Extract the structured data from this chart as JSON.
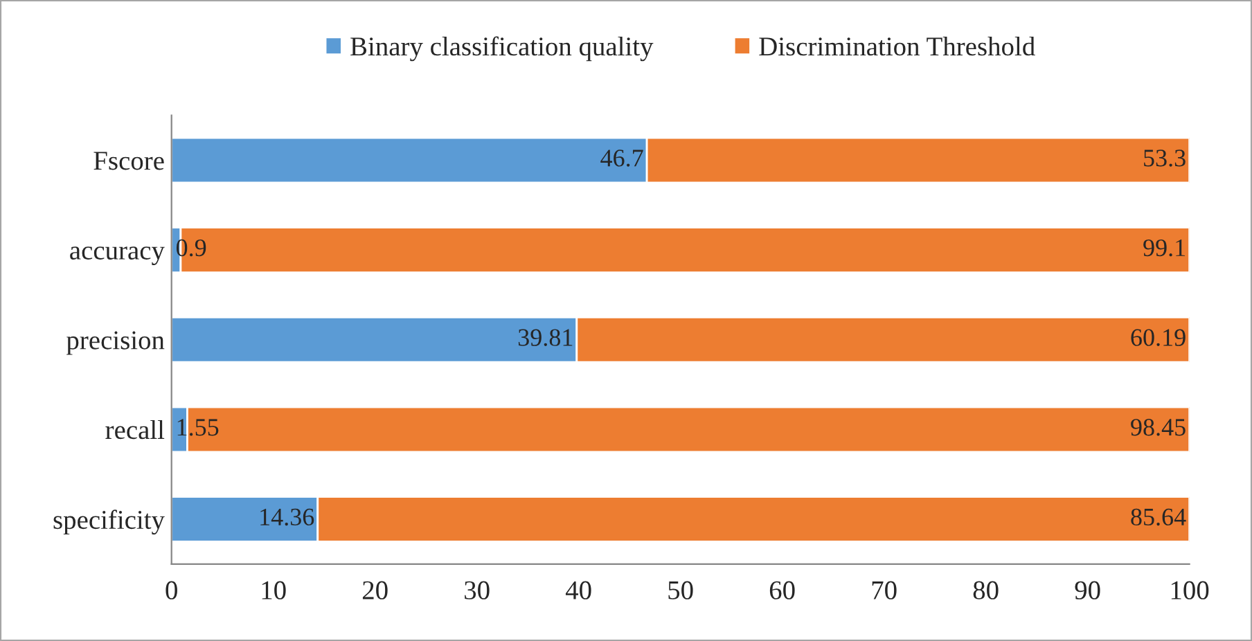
{
  "chart_data": {
    "type": "bar",
    "orientation": "horizontal",
    "stacked": true,
    "categories": [
      "Fscore",
      "accuracy",
      "precision",
      "recall",
      "specificity"
    ],
    "series": [
      {
        "name": "Binary classification quality",
        "color": "#5b9bd5",
        "values": [
          46.7,
          0.9,
          39.81,
          1.55,
          14.36
        ]
      },
      {
        "name": "Discrimination Threshold",
        "color": "#ed7d31",
        "values": [
          53.3,
          99.1,
          60.19,
          98.45,
          85.64
        ]
      }
    ],
    "xlim": [
      0,
      100
    ],
    "xticks": [
      0,
      10,
      20,
      30,
      40,
      50,
      60,
      70,
      80,
      90,
      100
    ],
    "data_labels": true,
    "grid": false,
    "legend": "top"
  }
}
